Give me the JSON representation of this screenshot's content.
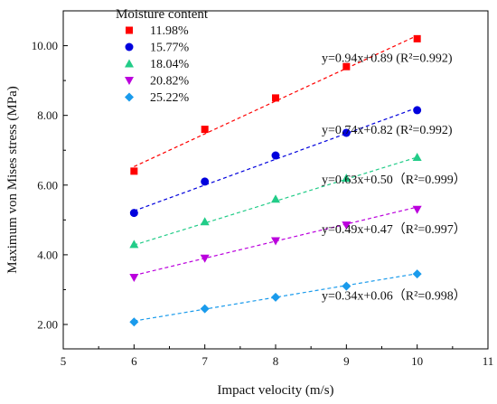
{
  "chart_data": {
    "type": "scatter",
    "xlabel": "Impact velocity (m/s)",
    "ylabel": "Maximum von Mises stress (MPa)",
    "xlim": [
      5,
      11
    ],
    "ylim": [
      1.3,
      11.0
    ],
    "x_ticks": [
      "5",
      "6",
      "7",
      "8",
      "9",
      "10",
      "11"
    ],
    "y_ticks": [
      "2.00",
      "4.00",
      "6.00",
      "8.00",
      "10.00"
    ],
    "grid": false,
    "legend": {
      "title": "Moisture content",
      "placement": "top-left"
    },
    "x": [
      6,
      7,
      8,
      9,
      10
    ],
    "series": [
      {
        "name": "11.98%",
        "color": "#ff0000",
        "marker": "square",
        "values": [
          6.4,
          7.6,
          8.5,
          9.4,
          10.2
        ],
        "fit_label": "y=0.94x+0.89 (R²=0.992)",
        "fit": {
          "slope": 0.94,
          "intercept": 0.89
        }
      },
      {
        "name": "15.77%",
        "color": "#0000dd",
        "marker": "circle",
        "values": [
          5.2,
          6.1,
          6.85,
          7.5,
          8.15
        ],
        "fit_label": "y=0.74x+0.82 (R²=0.992)",
        "fit": {
          "slope": 0.74,
          "intercept": 0.82
        }
      },
      {
        "name": "18.04%",
        "color": "#22cc88",
        "marker": "triangle-up",
        "values": [
          4.3,
          4.95,
          5.6,
          6.2,
          6.8
        ],
        "fit_label": "y=0.63x+0.50（R²=0.999）",
        "fit": {
          "slope": 0.63,
          "intercept": 0.5
        }
      },
      {
        "name": "20.82%",
        "color": "#bb00dd",
        "marker": "triangle-down",
        "values": [
          3.35,
          3.9,
          4.4,
          4.85,
          5.3
        ],
        "fit_label": "y=0.49x+0.47（R²=0.997）",
        "fit": {
          "slope": 0.49,
          "intercept": 0.47
        }
      },
      {
        "name": "25.22%",
        "color": "#1a9bec",
        "marker": "diamond",
        "values": [
          2.07,
          2.45,
          2.78,
          3.1,
          3.45
        ],
        "fit_label": "y=0.34x+0.06（R²=0.998）",
        "fit": {
          "slope": 0.34,
          "intercept": 0.06
        }
      }
    ]
  }
}
